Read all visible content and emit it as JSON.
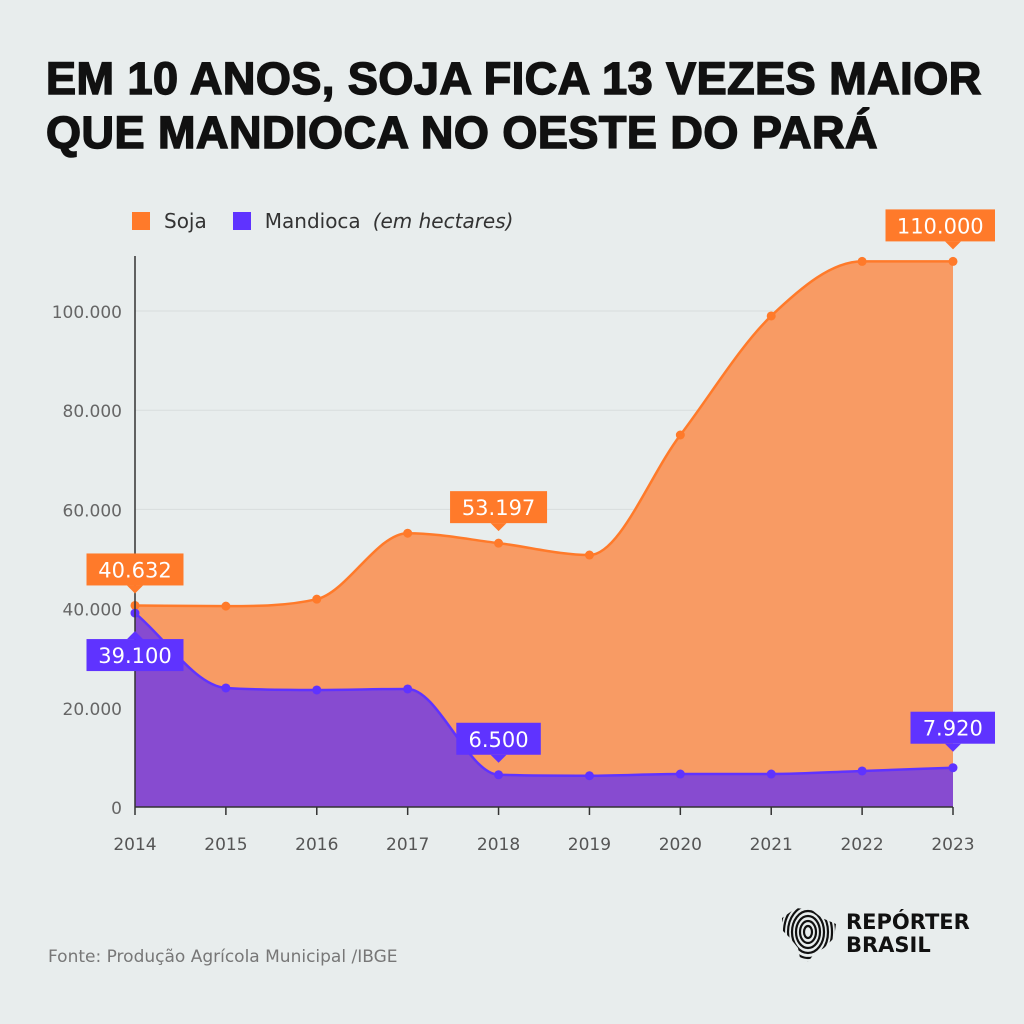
{
  "title": "EM 10 ANOS, SOJA FICA 13 VEZES MAIOR QUE MANDIOCA NO OESTE DO PARÁ",
  "legend": {
    "items": [
      "Soja",
      "Mandioca"
    ],
    "unit": "(em hectares)"
  },
  "source": "Fonte: Produção Agrícola Municipal /IBGE",
  "logo": {
    "line1": "REPÓRTER",
    "line2": "BRASIL"
  },
  "colors": {
    "soja_line": "#ff7a2a",
    "soja_fill": "#f89b64",
    "mandioca_line": "#5f33ff",
    "mandioca_fill": "#874bd0",
    "background": "#e8eded"
  },
  "chart_data": {
    "type": "area",
    "title": "EM 10 ANOS, SOJA FICA 13 VEZES MAIOR QUE MANDIOCA NO OESTE DO PARÁ",
    "x": [
      2014,
      2015,
      2016,
      2017,
      2018,
      2019,
      2020,
      2021,
      2022,
      2023
    ],
    "ylim": [
      0,
      110000
    ],
    "yticks": [
      0,
      20000,
      40000,
      60000,
      80000,
      100000
    ],
    "ytick_labels": [
      "0",
      "20.000",
      "40.000",
      "60.000",
      "80.000",
      "100.000"
    ],
    "grid": true,
    "legend_position": "top-left",
    "series": [
      {
        "name": "Soja",
        "values": [
          40632,
          40500,
          41900,
          55200,
          53197,
          50800,
          75000,
          99000,
          110000,
          110000
        ],
        "labels": [
          {
            "index": 0,
            "text": "40.632"
          },
          {
            "index": 4,
            "text": "53.197"
          },
          {
            "index": 9,
            "text": "110.000"
          }
        ]
      },
      {
        "name": "Mandioca",
        "values": [
          39100,
          24000,
          23600,
          23800,
          6500,
          6300,
          6650,
          6650,
          7260,
          7920
        ],
        "labels": [
          {
            "index": 0,
            "text": "39.100"
          },
          {
            "index": 4,
            "text": "6.500"
          },
          {
            "index": 9,
            "text": "7.920"
          }
        ]
      }
    ]
  }
}
